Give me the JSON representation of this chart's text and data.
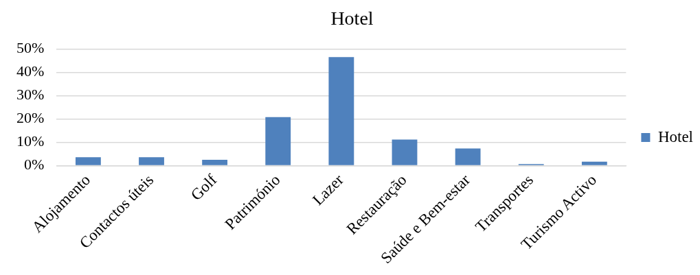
{
  "chart_data": {
    "type": "bar",
    "title": "Hotel",
    "categories": [
      "Alojamento",
      "Contactos úteis",
      "Golf",
      "Património",
      "Lazer",
      "Restauração",
      "Saúde e Bem-estar",
      "Transportes",
      "Turismo Activo"
    ],
    "series": [
      {
        "name": "Hotel",
        "color": "#4f81bd",
        "values": [
          3.6,
          3.6,
          2.5,
          20.8,
          46.6,
          11.2,
          7.4,
          0.7,
          1.7
        ]
      }
    ],
    "ylim": [
      0,
      50
    ],
    "yticks": [
      {
        "value": 0,
        "label": "0%"
      },
      {
        "value": 10,
        "label": "10%"
      },
      {
        "value": 20,
        "label": "20%"
      },
      {
        "value": 30,
        "label": "30%"
      },
      {
        "value": 40,
        "label": "40%"
      },
      {
        "value": 50,
        "label": "50%"
      }
    ],
    "grid": "y",
    "legend": "right"
  }
}
